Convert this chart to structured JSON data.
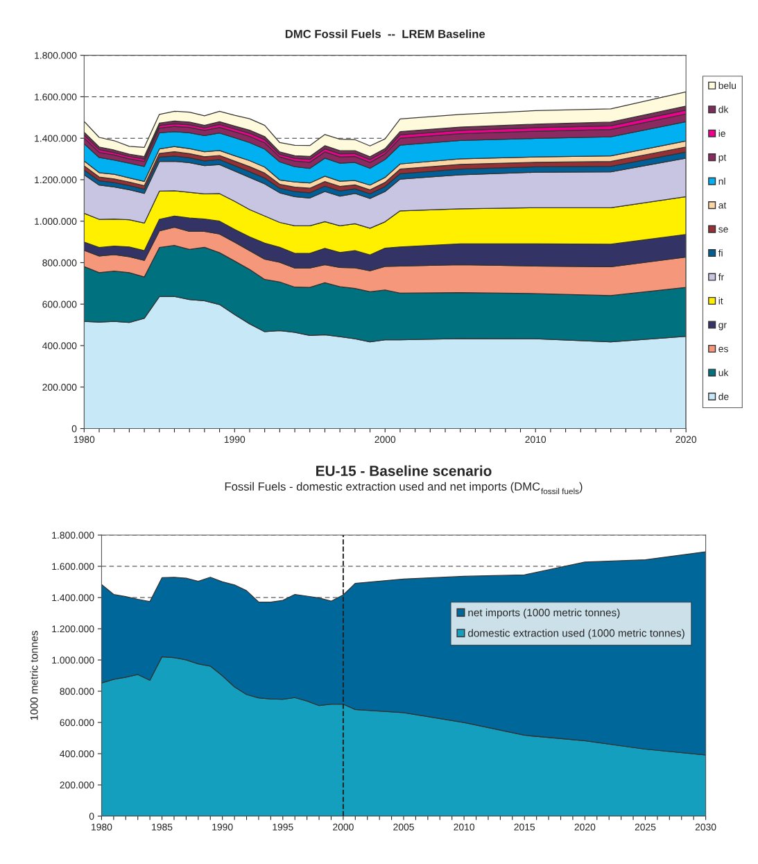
{
  "chart_data": [
    {
      "type": "area",
      "title": "DMC Fossil Fuels  --  LREM Baseline",
      "stacked": true,
      "legend": "right",
      "grid": "y",
      "x": [
        1980,
        1981,
        1982,
        1983,
        1984,
        1985,
        1986,
        1987,
        1988,
        1989,
        1990,
        1991,
        1992,
        1993,
        1994,
        1995,
        1996,
        1997,
        1998,
        1999,
        2000,
        2001,
        2005,
        2010,
        2015,
        2020
      ],
      "xlim": [
        1980,
        2020
      ],
      "xticks": [
        1980,
        {
          "value": 1981,
          "label": null
        },
        {
          "value": 1982,
          "label": null
        },
        {
          "value": 1983,
          "label": null
        },
        {
          "value": 1984,
          "label": null
        },
        {
          "value": 1985,
          "label": null
        },
        {
          "value": 1986,
          "label": null
        },
        {
          "value": 1987,
          "label": null
        },
        {
          "value": 1988,
          "label": null
        },
        {
          "value": 1989,
          "label": null
        },
        1990,
        {
          "value": 1991,
          "label": null
        },
        {
          "value": 1992,
          "label": null
        },
        {
          "value": 1993,
          "label": null
        },
        {
          "value": 1994,
          "label": null
        },
        {
          "value": 1995,
          "label": null
        },
        {
          "value": 1996,
          "label": null
        },
        {
          "value": 1997,
          "label": null
        },
        {
          "value": 1998,
          "label": null
        },
        {
          "value": 1999,
          "label": null
        },
        2000,
        {
          "value": 2001,
          "label": null
        },
        {
          "value": 2002,
          "label": null
        },
        {
          "value": 2003,
          "label": null
        },
        {
          "value": 2004,
          "label": null
        },
        {
          "value": 2005,
          "label": null
        },
        {
          "value": 2006,
          "label": null
        },
        {
          "value": 2007,
          "label": null
        },
        {
          "value": 2008,
          "label": null
        },
        {
          "value": 2009,
          "label": null
        },
        2010,
        {
          "value": 2011,
          "label": null
        },
        {
          "value": 2012,
          "label": null
        },
        {
          "value": 2013,
          "label": null
        },
        {
          "value": 2014,
          "label": null
        },
        {
          "value": 2015,
          "label": null
        },
        {
          "value": 2016,
          "label": null
        },
        {
          "value": 2017,
          "label": null
        },
        {
          "value": 2018,
          "label": null
        },
        {
          "value": 2019,
          "label": null
        },
        2020
      ],
      "ylim": [
        0,
        1800000
      ],
      "yticks": [
        0,
        {
          "value": 200000,
          "label": "200.000"
        },
        {
          "value": 400000,
          "label": "400.000"
        },
        {
          "value": 600000,
          "label": "600.000"
        },
        {
          "value": 800000,
          "label": "800.000"
        },
        {
          "value": 1000000,
          "label": "1.000.000"
        },
        {
          "value": 1200000,
          "label": "1.200.000"
        },
        {
          "value": 1400000,
          "label": "1.400.000"
        },
        {
          "value": 1600000,
          "label": "1.600.000"
        },
        {
          "value": 1800000,
          "label": "1.800.000"
        }
      ],
      "series": [
        {
          "name": "de",
          "color": "#c6e8f7",
          "values": [
            517000,
            513000,
            517000,
            512000,
            532000,
            636000,
            637000,
            622000,
            616000,
            598000,
            550000,
            505000,
            467000,
            472000,
            464000,
            449000,
            452000,
            443000,
            433000,
            418000,
            428000,
            428000,
            434000,
            433000,
            418000,
            445000
          ]
        },
        {
          "name": "uk",
          "color": "#00717f",
          "values": [
            264000,
            239000,
            242000,
            240000,
            199000,
            237000,
            246000,
            242000,
            258000,
            250000,
            258000,
            262000,
            252000,
            235000,
            218000,
            232000,
            251000,
            241000,
            243000,
            242000,
            240000,
            225000,
            222000,
            218000,
            223000,
            236000
          ]
        },
        {
          "name": "es",
          "color": "#f4977a",
          "values": [
            79000,
            80000,
            80000,
            77000,
            80000,
            80000,
            88000,
            87000,
            77000,
            90000,
            91000,
            91000,
            98000,
            95000,
            92000,
            93000,
            87000,
            93000,
            99000,
            101000,
            114000,
            131000,
            134000,
            133000,
            139000,
            146000
          ]
        },
        {
          "name": "gr",
          "color": "#333366",
          "values": [
            39000,
            41000,
            41000,
            47000,
            47000,
            56000,
            54000,
            64000,
            59000,
            62000,
            61000,
            66000,
            77000,
            72000,
            71000,
            71000,
            79000,
            72000,
            83000,
            76000,
            88000,
            92000,
            101000,
            107000,
            109000,
            109000
          ]
        },
        {
          "name": "it",
          "color": "#fff000",
          "values": [
            139000,
            136000,
            130000,
            131000,
            133000,
            136000,
            122000,
            124000,
            122000,
            133000,
            136000,
            132000,
            131000,
            120000,
            133000,
            133000,
            129000,
            129000,
            130000,
            129000,
            127000,
            174000,
            169000,
            174000,
            176000,
            182000
          ]
        },
        {
          "name": "fr",
          "color": "#c8c5e2",
          "values": [
            186000,
            165000,
            155000,
            145000,
            143000,
            143000,
            142000,
            143000,
            136000,
            140000,
            146000,
            155000,
            155000,
            143000,
            140000,
            134000,
            145000,
            143000,
            146000,
            144000,
            146000,
            153000,
            164000,
            171000,
            173000,
            186000
          ]
        },
        {
          "name": "fi",
          "color": "#005f96",
          "values": [
            23000,
            21000,
            21000,
            20000,
            20000,
            21000,
            25000,
            24000,
            23000,
            24000,
            26000,
            28000,
            28000,
            22000,
            25000,
            25000,
            26000,
            25000,
            22000,
            22000,
            24000,
            26000,
            27000,
            26000,
            27000,
            29000
          ]
        },
        {
          "name": "se",
          "color": "#953035",
          "values": [
            20000,
            18000,
            18000,
            17000,
            17000,
            18000,
            21000,
            20000,
            20000,
            20000,
            22000,
            24000,
            24000,
            19000,
            21000,
            22000,
            22000,
            22000,
            19000,
            19000,
            20000,
            22000,
            23000,
            22000,
            23000,
            25000
          ]
        },
        {
          "name": "at",
          "color": "#fcd5a5",
          "values": [
            23000,
            21000,
            22000,
            20000,
            21000,
            21000,
            25000,
            24000,
            24000,
            24000,
            26000,
            29000,
            29000,
            21000,
            25000,
            25000,
            26000,
            25000,
            21000,
            23000,
            24000,
            25000,
            27000,
            26000,
            27000,
            29000
          ]
        },
        {
          "name": "nl",
          "color": "#00b0f0",
          "values": [
            83000,
            73000,
            69000,
            71000,
            72000,
            78000,
            72000,
            76000,
            78000,
            84000,
            87000,
            87000,
            87000,
            87000,
            74000,
            71000,
            87000,
            87000,
            87000,
            81000,
            87000,
            91000,
            88000,
            89000,
            92000,
            93000
          ]
        },
        {
          "name": "pt",
          "color": "#8b2a60",
          "values": [
            28000,
            25000,
            24000,
            21000,
            24000,
            23000,
            25000,
            26000,
            25000,
            27000,
            28000,
            30000,
            30000,
            24000,
            27000,
            29000,
            30000,
            30000,
            29000,
            28000,
            26000,
            33000,
            33000,
            35000,
            35000,
            37000
          ]
        },
        {
          "name": "ie",
          "color": "#ec008c",
          "values": [
            14000,
            13000,
            12000,
            11000,
            12000,
            12000,
            13000,
            13000,
            12000,
            14000,
            14000,
            15000,
            15000,
            12000,
            13000,
            14000,
            15000,
            15000,
            14000,
            14000,
            13000,
            16000,
            16000,
            17000,
            18000,
            19000
          ]
        },
        {
          "name": "dk",
          "color": "#7b2d5a",
          "values": [
            14000,
            13000,
            12000,
            11000,
            12000,
            12000,
            13000,
            13000,
            12000,
            14000,
            14000,
            15000,
            15000,
            12000,
            13000,
            14000,
            15000,
            15000,
            14000,
            14000,
            13000,
            16000,
            16000,
            17000,
            18000,
            19000
          ]
        },
        {
          "name": "belu",
          "color": "#fffadc",
          "values": [
            52000,
            46000,
            45000,
            38000,
            44000,
            42000,
            47000,
            48000,
            46000,
            50000,
            52000,
            55000,
            54000,
            45000,
            50000,
            53000,
            54000,
            55000,
            53000,
            52000,
            47000,
            61000,
            61000,
            65000,
            64000,
            69000
          ]
        }
      ]
    },
    {
      "type": "area",
      "title": "EU-15 - Baseline scenario",
      "subtitle": "Fossil Fuels - domestic extraction used and net imports (DMC$_{fossil fuels}$)",
      "ylabel": "1000 metric tonnes",
      "stacked": true,
      "legend": "top right",
      "grid": "y",
      "x": [
        1980,
        1981,
        1982,
        1983,
        1984,
        1985,
        1986,
        1987,
        1988,
        1989,
        1990,
        1991,
        1992,
        1993,
        1994,
        1995,
        1996,
        1997,
        1998,
        1999,
        2000,
        2001,
        2005,
        2010,
        2015,
        2020,
        2025,
        2030
      ],
      "xlim": [
        1980,
        2030
      ],
      "xticks": [
        1980,
        {
          "value": 1981,
          "label": null
        },
        {
          "value": 1982,
          "label": null
        },
        {
          "value": 1983,
          "label": null
        },
        {
          "value": 1984,
          "label": null
        },
        1985,
        {
          "value": 1986,
          "label": null
        },
        {
          "value": 1987,
          "label": null
        },
        {
          "value": 1988,
          "label": null
        },
        {
          "value": 1989,
          "label": null
        },
        1990,
        {
          "value": 1991,
          "label": null
        },
        {
          "value": 1992,
          "label": null
        },
        {
          "value": 1993,
          "label": null
        },
        {
          "value": 1994,
          "label": null
        },
        1995,
        {
          "value": 1996,
          "label": null
        },
        {
          "value": 1997,
          "label": null
        },
        {
          "value": 1998,
          "label": null
        },
        {
          "value": 1999,
          "label": null
        },
        2000,
        {
          "value": 2001,
          "label": null
        },
        {
          "value": 2002,
          "label": null
        },
        {
          "value": 2003,
          "label": null
        },
        {
          "value": 2004,
          "label": null
        },
        2005,
        {
          "value": 2006,
          "label": null
        },
        {
          "value": 2007,
          "label": null
        },
        {
          "value": 2008,
          "label": null
        },
        {
          "value": 2009,
          "label": null
        },
        2010,
        {
          "value": 2011,
          "label": null
        },
        {
          "value": 2012,
          "label": null
        },
        {
          "value": 2013,
          "label": null
        },
        {
          "value": 2014,
          "label": null
        },
        2015,
        {
          "value": 2016,
          "label": null
        },
        {
          "value": 2017,
          "label": null
        },
        {
          "value": 2018,
          "label": null
        },
        {
          "value": 2019,
          "label": null
        },
        2020,
        {
          "value": 2021,
          "label": null
        },
        {
          "value": 2022,
          "label": null
        },
        {
          "value": 2023,
          "label": null
        },
        {
          "value": 2024,
          "label": null
        },
        2025,
        {
          "value": 2026,
          "label": null
        },
        {
          "value": 2027,
          "label": null
        },
        {
          "value": 2028,
          "label": null
        },
        {
          "value": 2029,
          "label": null
        },
        2030
      ],
      "ylim": [
        0,
        1800000
      ],
      "yticks": [
        0,
        {
          "value": 200000,
          "label": "200.000"
        },
        {
          "value": 400000,
          "label": "400.000"
        },
        {
          "value": 600000,
          "label": "600.000"
        },
        {
          "value": 800000,
          "label": "800.000"
        },
        {
          "value": 1000000,
          "label": "1.000.000"
        },
        {
          "value": 1200000,
          "label": "1.200.000"
        },
        {
          "value": 1400000,
          "label": "1.400.000"
        },
        {
          "value": 1600000,
          "label": "1.600.000"
        },
        {
          "value": 1800000,
          "label": "1.800.000"
        }
      ],
      "ref_lines": [
        {
          "axis": "x",
          "value": 2000,
          "label": null,
          "color": "#222222",
          "line_style": "dashed"
        }
      ],
      "series": [
        {
          "name": "domestic extraction used (1000 metric tonnes)",
          "color": "#139fbd",
          "values": [
            853000,
            876000,
            890000,
            907000,
            870000,
            1021000,
            1015000,
            1001000,
            975000,
            961000,
            899000,
            828000,
            779000,
            757000,
            751000,
            748000,
            759000,
            737000,
            708000,
            717000,
            717000,
            683000,
            663000,
            600000,
            518000,
            483000,
            429000,
            392000
          ]
        },
        {
          "name": "net imports (1000 metric tonnes)",
          "color": "#00679a",
          "values": [
            630000,
            544000,
            516000,
            482000,
            504000,
            506000,
            515000,
            523000,
            529000,
            569000,
            602000,
            653000,
            665000,
            614000,
            620000,
            634000,
            661000,
            672000,
            689000,
            660000,
            700000,
            808000,
            856000,
            936000,
            1027000,
            1144000,
            1213000,
            1301000
          ]
        }
      ]
    }
  ]
}
